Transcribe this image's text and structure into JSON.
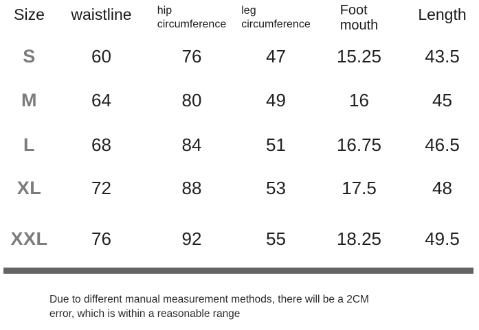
{
  "chart_data": {
    "type": "table",
    "columns": [
      "Size",
      "waistline",
      "hip circumference",
      "leg circumference",
      "Foot mouth",
      "Length"
    ],
    "rows": [
      [
        "S",
        "60",
        "76",
        "47",
        "15.25",
        "43.5"
      ],
      [
        "M",
        "64",
        "80",
        "49",
        "16",
        "45"
      ],
      [
        "L",
        "68",
        "84",
        "51",
        "16.75",
        "46.5"
      ],
      [
        "XL",
        "72",
        "88",
        "53",
        "17.5",
        "48"
      ],
      [
        "XXL",
        "76",
        "92",
        "55",
        "18.25",
        "49.5"
      ]
    ]
  },
  "header": {
    "size": "Size",
    "waistline": "waistline",
    "hip_line1": "hip",
    "hip_line2": "circumference",
    "leg_line1": "leg",
    "leg_line2": "circumference",
    "foot_line1": "Foot",
    "foot_line2": "mouth",
    "length": "Length"
  },
  "note": {
    "line1": "Due to different manual measurement methods, there will be a 2CM",
    "line2": "error, which is within a reasonable range"
  },
  "colors": {
    "size_label": "#7c7c7c",
    "number_text": "#1f1f1f",
    "divider": "#646464",
    "note_text": "#2b2b2b"
  }
}
